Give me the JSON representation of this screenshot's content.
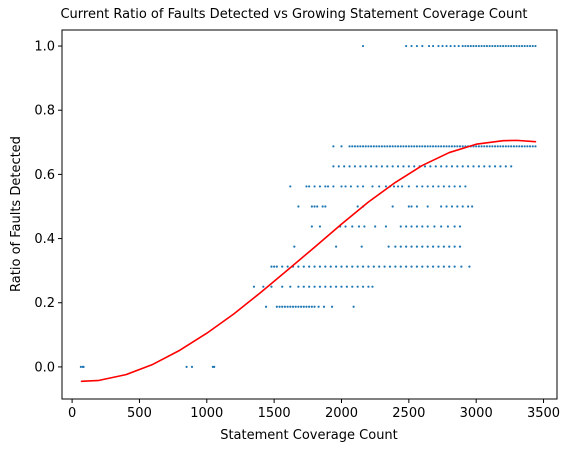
{
  "chart_data": {
    "type": "scatter",
    "title": "Current Ratio of Faults Detected vs Growing Statement Coverage Count",
    "xlabel": "Statement Coverage Count",
    "ylabel": "Ratio of Faults Detected",
    "xlim": [
      -75,
      3600
    ],
    "ylim": [
      -0.1,
      1.05
    ],
    "xticks": [
      0,
      500,
      1000,
      1500,
      2000,
      2500,
      3000,
      3500
    ],
    "yticks": [
      0.0,
      0.2,
      0.4,
      0.6,
      0.8,
      1.0
    ],
    "xtick_labels": [
      "0",
      "500",
      "1000",
      "1500",
      "2000",
      "2500",
      "3000",
      "3500"
    ],
    "ytick_labels": [
      "0.0",
      "0.2",
      "0.4",
      "0.6",
      "0.8",
      "1.0"
    ],
    "grid": false,
    "colors": {
      "points": "#1f77b4",
      "fit": "#ff0000"
    },
    "series": [
      {
        "kind": "points",
        "bands": [
          {
            "y": 0.0,
            "xs": [
              65,
              80,
              85,
              850,
              890,
              1045,
              1055
            ]
          },
          {
            "y": 0.1875,
            "xs": [
              1440,
              1520,
              1540,
              1560,
              1580,
              1600,
              1620,
              1640,
              1660,
              1680,
              1700,
              1720,
              1740,
              1760,
              1780,
              1800,
              1830,
              1870,
              1930,
              2090
            ]
          },
          {
            "y": 0.25,
            "xs": [
              1350,
              1420,
              1480,
              1560,
              1620,
              1680,
              1720,
              1760,
              1800,
              1840,
              1880,
              1920,
              1960,
              2000,
              2040,
              2080,
              2120,
              2160,
              2200,
              2230
            ]
          },
          {
            "y": 0.3125,
            "xs": [
              1480,
              1500,
              1520,
              1560,
              1600,
              1640,
              1680,
              1720,
              1760,
              1800,
              1840,
              1880,
              1920,
              1960,
              2000,
              2040,
              2080,
              2120,
              2160,
              2200,
              2240,
              2280,
              2320,
              2360,
              2400,
              2440,
              2480,
              2520,
              2560,
              2600,
              2640,
              2680,
              2720,
              2760,
              2800,
              2840,
              2890,
              2950
            ]
          },
          {
            "y": 0.375,
            "xs": [
              1650,
              1960,
              2150,
              2350,
              2400,
              2440,
              2480,
              2520,
              2560,
              2600,
              2640,
              2680,
              2720,
              2760,
              2800,
              2840,
              2880
            ]
          },
          {
            "y": 0.4375,
            "xs": [
              1780,
              1840,
              1990,
              2030,
              2080,
              2130,
              2170,
              2250,
              2330,
              2440,
              2480,
              2520,
              2560,
              2600,
              2640,
              2690,
              2740,
              2790,
              2840,
              2880
            ]
          },
          {
            "y": 0.5,
            "xs": [
              1680,
              1780,
              1800,
              1820,
              1860,
              1880,
              2120,
              2160,
              2380,
              2500,
              2520,
              2560,
              2640,
              2740,
              2780,
              2820,
              2860,
              2900,
              2940,
              2970
            ]
          },
          {
            "y": 0.5625,
            "xs": [
              1620,
              1740,
              1760,
              1800,
              1840,
              1880,
              1900,
              1940,
              2000,
              2030,
              2070,
              2120,
              2160,
              2230,
              2280,
              2330,
              2360,
              2390,
              2420,
              2450,
              2500,
              2560,
              2600,
              2640,
              2680,
              2720,
              2760,
              2800,
              2840,
              2880,
              2920
            ]
          },
          {
            "y": 0.625,
            "xs": [
              1940,
              1980,
              2020,
              2060,
              2100,
              2140,
              2180,
              2220,
              2260,
              2300,
              2340,
              2380,
              2420,
              2460,
              2500,
              2540,
              2580,
              2620,
              2660,
              2700,
              2740,
              2780,
              2820,
              2860,
              2900,
              2940,
              2980,
              3020,
              3060,
              3100,
              3140,
              3180,
              3220,
              3260
            ]
          },
          {
            "y": 0.6875,
            "xs": [
              1940,
              2000,
              2060,
              2080,
              2100,
              2120,
              2140,
              2160,
              2180,
              2200,
              2220,
              2240,
              2260,
              2280,
              2300,
              2320,
              2340,
              2360,
              2380,
              2400,
              2420,
              2440,
              2460,
              2480,
              2500,
              2520,
              2540,
              2560,
              2580,
              2600,
              2620,
              2640,
              2660,
              2680,
              2700,
              2720,
              2740,
              2760,
              2780,
              2800,
              2820,
              2840,
              2860,
              2880,
              2900,
              2920,
              2940,
              2960,
              2980,
              3000,
              3020,
              3040,
              3060,
              3080,
              3100,
              3120,
              3140,
              3160,
              3180,
              3200,
              3220,
              3240,
              3260,
              3280,
              3300,
              3320,
              3340,
              3360,
              3380,
              3400,
              3420,
              3440
            ]
          },
          {
            "y": 1.0,
            "xs": [
              2160,
              2480,
              2520,
              2560,
              2600,
              2650,
              2680,
              2720,
              2750,
              2780,
              2810,
              2840,
              2870,
              2900,
              2920,
              2940,
              2960,
              2980,
              3000,
              3020,
              3040,
              3060,
              3080,
              3100,
              3120,
              3140,
              3160,
              3180,
              3200,
              3220,
              3240,
              3260,
              3280,
              3300,
              3320,
              3340,
              3360,
              3380,
              3400,
              3420,
              3440
            ]
          }
        ]
      },
      {
        "kind": "fit-line",
        "x": [
          70,
          200,
          400,
          600,
          800,
          1000,
          1200,
          1400,
          1600,
          1800,
          2000,
          2200,
          2400,
          2600,
          2800,
          3000,
          3200,
          3300,
          3440
        ],
        "y": [
          -0.045,
          -0.042,
          -0.024,
          0.008,
          0.052,
          0.105,
          0.165,
          0.232,
          0.302,
          0.373,
          0.445,
          0.514,
          0.575,
          0.628,
          0.668,
          0.694,
          0.705,
          0.706,
          0.702
        ]
      }
    ]
  }
}
